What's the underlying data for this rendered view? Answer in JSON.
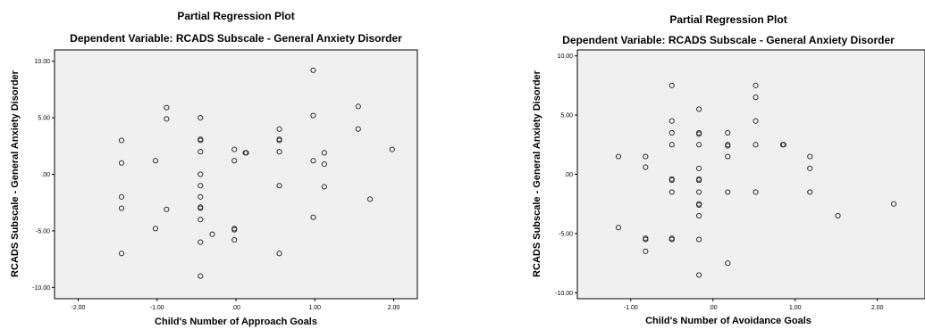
{
  "chart_data": [
    {
      "type": "scatter",
      "title": "Partial Regression Plot",
      "subtitle": "Dependent Variable: RCADS Subscale - General Anxiety Disorder",
      "xlabel": "Child's Number of Approach Goals",
      "ylabel": "RCADS Subscale - General Anxiety Disorder",
      "xlim": [
        -2.3,
        2.3
      ],
      "ylim": [
        -11.0,
        11.0
      ],
      "xticks": [
        -2.0,
        -1.0,
        0.0,
        1.0,
        2.0
      ],
      "xtick_labels": [
        "-2.00",
        "-1.00",
        ".00",
        "1.00",
        "2.00"
      ],
      "yticks": [
        -10.0,
        -5.0,
        0.0,
        5.0,
        10.0
      ],
      "ytick_labels": [
        "-10.00",
        "-5.00",
        ".00",
        "5.00",
        "10.00"
      ],
      "grid": false,
      "legend": "none",
      "plot_bg": "#f0f0f0",
      "marker_color": "#333333",
      "points": [
        {
          "x": -1.45,
          "y": 3.0
        },
        {
          "x": -1.45,
          "y": 1.0
        },
        {
          "x": -1.45,
          "y": -2.0
        },
        {
          "x": -1.45,
          "y": -3.0
        },
        {
          "x": -1.45,
          "y": -7.0
        },
        {
          "x": -1.02,
          "y": 1.2
        },
        {
          "x": -1.02,
          "y": -4.8
        },
        {
          "x": -0.88,
          "y": 5.9
        },
        {
          "x": -0.88,
          "y": 4.9
        },
        {
          "x": -0.88,
          "y": -3.1
        },
        {
          "x": -0.45,
          "y": 5.0
        },
        {
          "x": -0.45,
          "y": 3.1
        },
        {
          "x": -0.45,
          "y": 3.0
        },
        {
          "x": -0.45,
          "y": 2.0
        },
        {
          "x": -0.45,
          "y": 0.0
        },
        {
          "x": -0.45,
          "y": -1.0
        },
        {
          "x": -0.45,
          "y": -2.0
        },
        {
          "x": -0.45,
          "y": -2.9
        },
        {
          "x": -0.45,
          "y": -3.0
        },
        {
          "x": -0.45,
          "y": -4.0
        },
        {
          "x": -0.45,
          "y": -6.0
        },
        {
          "x": -0.45,
          "y": -9.0
        },
        {
          "x": -0.3,
          "y": -5.3
        },
        {
          "x": -0.02,
          "y": 2.2
        },
        {
          "x": -0.02,
          "y": 1.2
        },
        {
          "x": -0.02,
          "y": -4.8
        },
        {
          "x": -0.02,
          "y": -4.9
        },
        {
          "x": -0.02,
          "y": -5.8
        },
        {
          "x": 0.12,
          "y": 1.9
        },
        {
          "x": 0.13,
          "y": 1.9
        },
        {
          "x": 0.55,
          "y": 4.0
        },
        {
          "x": 0.55,
          "y": 3.1
        },
        {
          "x": 0.55,
          "y": 3.0
        },
        {
          "x": 0.55,
          "y": 2.0
        },
        {
          "x": 0.55,
          "y": -1.0
        },
        {
          "x": 0.55,
          "y": -7.0
        },
        {
          "x": 0.98,
          "y": 9.2
        },
        {
          "x": 0.98,
          "y": 5.2
        },
        {
          "x": 0.98,
          "y": 1.2
        },
        {
          "x": 0.98,
          "y": -3.8
        },
        {
          "x": 1.12,
          "y": 1.9
        },
        {
          "x": 1.12,
          "y": 0.9
        },
        {
          "x": 1.12,
          "y": -1.1
        },
        {
          "x": 1.55,
          "y": 6.0
        },
        {
          "x": 1.55,
          "y": 4.0
        },
        {
          "x": 1.7,
          "y": -2.2
        },
        {
          "x": 1.98,
          "y": 2.2
        }
      ]
    },
    {
      "type": "scatter",
      "title": "Partial Regression Plot",
      "subtitle": "Dependent Variable: RCADS Subscale - General Anxiety Disorder",
      "xlabel": "Child's Number of Avoidance Goals",
      "ylabel": "RCADS Subscale - General Anxiety Disorder",
      "xlim": [
        -1.65,
        2.58
      ],
      "ylim": [
        -10.5,
        10.5
      ],
      "xticks": [
        -1.0,
        0.0,
        1.0,
        2.0
      ],
      "xtick_labels": [
        "-1.00",
        ".00",
        "1.00",
        "2.00"
      ],
      "yticks": [
        -10.0,
        -5.0,
        0.0,
        5.0,
        10.0
      ],
      "ytick_labels": [
        "-10.00",
        "-5.00",
        ".00",
        "5.00",
        "10.00"
      ],
      "grid": false,
      "legend": "none",
      "plot_bg": "#f0f0f0",
      "marker_color": "#333333",
      "points": [
        {
          "x": -1.15,
          "y": 1.5
        },
        {
          "x": -1.15,
          "y": -4.5
        },
        {
          "x": -0.82,
          "y": 1.5
        },
        {
          "x": -0.82,
          "y": 0.6
        },
        {
          "x": -0.82,
          "y": -5.4
        },
        {
          "x": -0.82,
          "y": -5.5
        },
        {
          "x": -0.82,
          "y": -6.5
        },
        {
          "x": -0.5,
          "y": 7.5
        },
        {
          "x": -0.5,
          "y": 4.5
        },
        {
          "x": -0.5,
          "y": 3.5
        },
        {
          "x": -0.5,
          "y": 2.5
        },
        {
          "x": -0.5,
          "y": -0.4
        },
        {
          "x": -0.5,
          "y": -0.5
        },
        {
          "x": -0.5,
          "y": -1.5
        },
        {
          "x": -0.5,
          "y": -5.4
        },
        {
          "x": -0.5,
          "y": -5.5
        },
        {
          "x": -0.17,
          "y": 5.5
        },
        {
          "x": -0.17,
          "y": 3.5
        },
        {
          "x": -0.17,
          "y": 3.4
        },
        {
          "x": -0.17,
          "y": 2.5
        },
        {
          "x": -0.17,
          "y": 0.5
        },
        {
          "x": -0.17,
          "y": -0.4
        },
        {
          "x": -0.17,
          "y": -0.5
        },
        {
          "x": -0.17,
          "y": -1.5
        },
        {
          "x": -0.17,
          "y": -2.5
        },
        {
          "x": -0.17,
          "y": -2.6
        },
        {
          "x": -0.17,
          "y": -3.5
        },
        {
          "x": -0.17,
          "y": -5.5
        },
        {
          "x": -0.17,
          "y": -8.5
        },
        {
          "x": 0.18,
          "y": 3.5
        },
        {
          "x": 0.18,
          "y": 2.5
        },
        {
          "x": 0.18,
          "y": 2.4
        },
        {
          "x": 0.18,
          "y": 1.5
        },
        {
          "x": 0.18,
          "y": -1.5
        },
        {
          "x": 0.18,
          "y": -7.5
        },
        {
          "x": 0.52,
          "y": 7.5
        },
        {
          "x": 0.52,
          "y": 6.5
        },
        {
          "x": 0.52,
          "y": 4.5
        },
        {
          "x": 0.52,
          "y": 2.5
        },
        {
          "x": 0.52,
          "y": -1.5
        },
        {
          "x": 0.85,
          "y": 2.5
        },
        {
          "x": 0.86,
          "y": 2.5
        },
        {
          "x": 1.18,
          "y": 1.5
        },
        {
          "x": 1.18,
          "y": 0.5
        },
        {
          "x": 1.18,
          "y": -1.5
        },
        {
          "x": 1.52,
          "y": -3.5
        },
        {
          "x": 2.2,
          "y": -2.5
        }
      ]
    }
  ]
}
